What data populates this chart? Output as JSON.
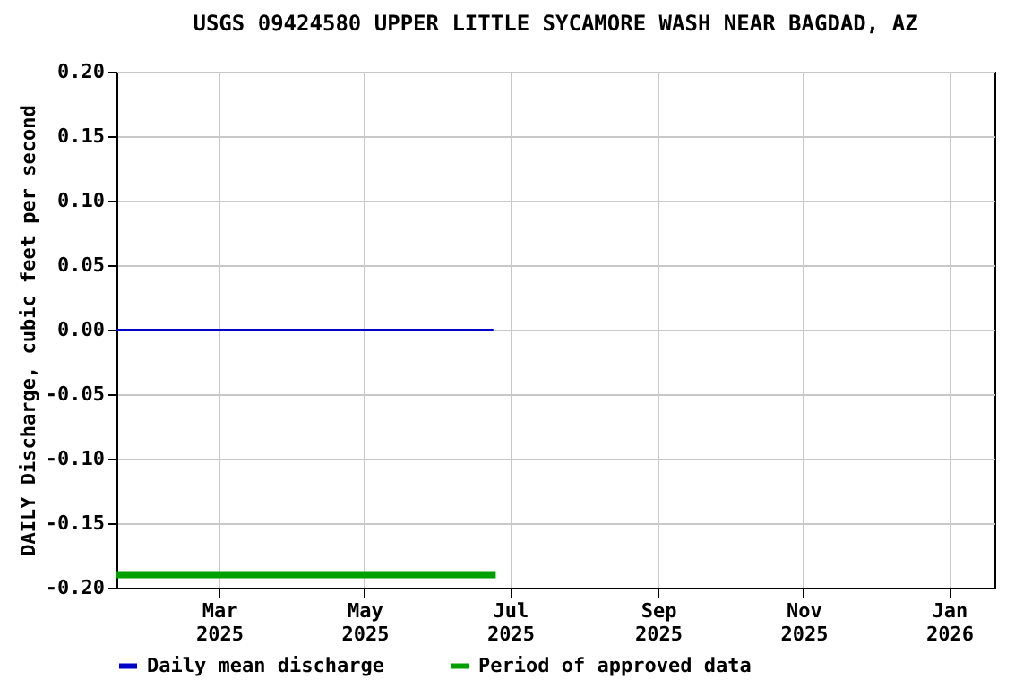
{
  "chart_data": {
    "type": "line",
    "title": "USGS 09424580 UPPER LITTLE SYCAMORE WASH NEAR BAGDAD, AZ",
    "ylabel": "DAILY Discharge, cubic feet per second",
    "xlim": [
      "2025-01-17",
      "2026-01-20"
    ],
    "xticks": [
      {
        "value": "2025-03-01",
        "label": "Mar 2025"
      },
      {
        "value": "2025-05-01",
        "label": "May 2025"
      },
      {
        "value": "2025-07-01",
        "label": "Jul 2025"
      },
      {
        "value": "2025-09-01",
        "label": "Sep 2025"
      },
      {
        "value": "2025-11-01",
        "label": "Nov 2025"
      },
      {
        "value": "2026-01-01",
        "label": "Jan 2026"
      }
    ],
    "ylim": [
      -0.2,
      0.2
    ],
    "yticks": [
      {
        "value": -0.2,
        "label": "-0.20"
      },
      {
        "value": -0.15,
        "label": "-0.15"
      },
      {
        "value": -0.1,
        "label": "-0.10"
      },
      {
        "value": -0.05,
        "label": "-0.05"
      },
      {
        "value": 0,
        "label": "0.00"
      },
      {
        "value": 0.05,
        "label": "0.05"
      },
      {
        "value": 0.1,
        "label": "0.10"
      },
      {
        "value": 0.15,
        "label": "0.15"
      },
      {
        "value": 0.2,
        "label": "0.20"
      }
    ],
    "grid": true,
    "legend": "bottom",
    "series": [
      {
        "name": "Daily mean discharge",
        "color": "#0000cc",
        "x": [
          "2025-01-17",
          "2025-06-24"
        ],
        "values": [
          0,
          0
        ]
      },
      {
        "name": "Period of approved data",
        "color": "#00a000",
        "x": [
          "2025-01-17",
          "2025-06-25"
        ],
        "values": [
          -0.19,
          -0.19
        ]
      }
    ]
  }
}
